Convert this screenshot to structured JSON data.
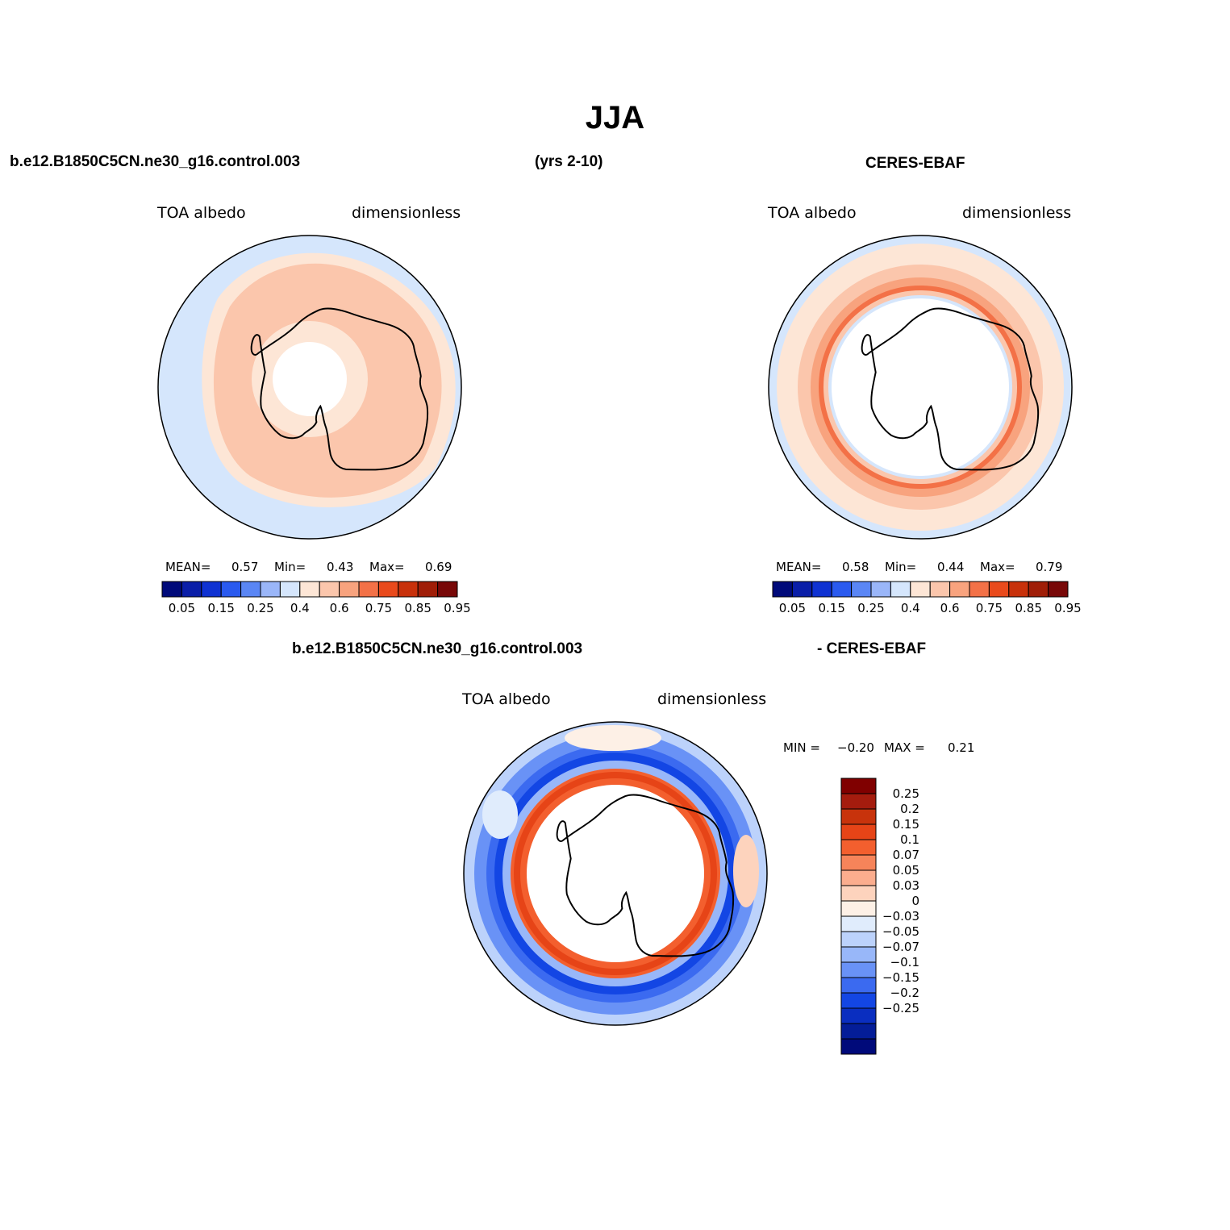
{
  "title": "JJA",
  "top_left": {
    "case_label": "b.e12.B1850C5CN.ne30_g16.control.003",
    "years_label": "(yrs 2-10)",
    "variable": "TOA  albedo",
    "units": "dimensionless",
    "stats": {
      "mean_label": "MEAN=",
      "mean": "0.57",
      "min_label": "Min=",
      "min": "0.43",
      "max_label": "Max=",
      "max": "0.69"
    }
  },
  "top_right": {
    "obs_label": "CERES-EBAF",
    "variable": "TOA  albedo",
    "units": "dimensionless",
    "stats": {
      "mean_label": "MEAN=",
      "mean": "0.58",
      "min_label": "Min=",
      "min": "0.44",
      "max_label": "Max=",
      "max": "0.79"
    }
  },
  "abs_colorbar": {
    "colors": [
      "#000a7a",
      "#0a1ea8",
      "#0f32d2",
      "#2a5aef",
      "#5a86f5",
      "#9ab6f9",
      "#d5e6fc",
      "#fde6d6",
      "#fbc6ac",
      "#f8a37e",
      "#f37147",
      "#e94a1c",
      "#c8310b",
      "#a01e08",
      "#780808"
    ],
    "tick_labels": [
      "0.05",
      "0.15",
      "0.25",
      "0.4",
      "0.6",
      "0.75",
      "0.85",
      "0.95"
    ]
  },
  "bottom": {
    "case_label": "b.e12.B1850C5CN.ne30_g16.control.003",
    "obs_label": "- CERES-EBAF",
    "variable": "TOA  albedo",
    "units": "dimensionless",
    "min_label": "MIN =",
    "min": "−0.20",
    "max_label": "MAX =",
    "max": "0.21"
  },
  "diff_colorbar": {
    "colors": [
      "#800000",
      "#a51c0e",
      "#c8330c",
      "#e64417",
      "#f35f2e",
      "#f6845a",
      "#fbad8e",
      "#fdd3bd",
      "#fdf0e6",
      "#e0ecfc",
      "#bcd2fb",
      "#98b7f9",
      "#6992f6",
      "#3b6af0",
      "#1346e4",
      "#0a2ec0",
      "#041d98",
      "#000a7a"
    ],
    "labels": [
      "0.25",
      "0.2",
      "0.15",
      "0.1",
      "0.07",
      "0.05",
      "0.03",
      "0",
      "−0.03",
      "−0.05",
      "−0.07",
      "−0.1",
      "−0.15",
      "−0.2",
      "−0.25"
    ]
  }
}
